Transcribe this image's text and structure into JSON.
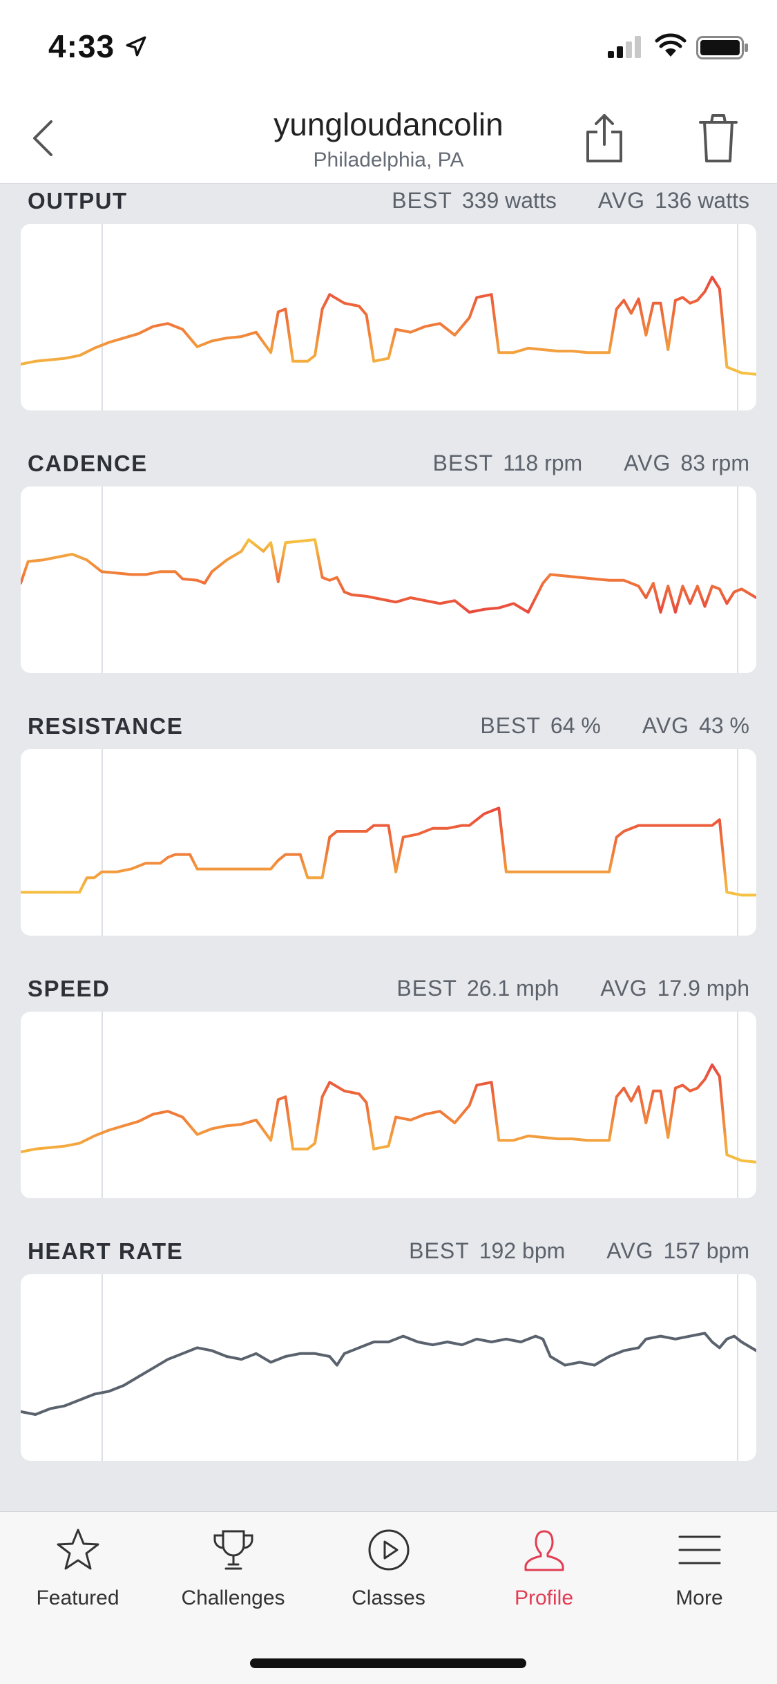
{
  "status_bar": {
    "time": "4:33"
  },
  "header": {
    "title": "yungloudancolin",
    "subtitle": "Philadelphia, PA"
  },
  "metrics": [
    {
      "label": "OUTPUT",
      "best_label": "BEST",
      "best_value": "339 watts",
      "avg_label": "AVG",
      "avg_value": "136 watts",
      "colors": [
        "#f5c242",
        "#f07a3a",
        "#e84a3d"
      ],
      "ylim": [
        0,
        100
      ],
      "points": [
        [
          0,
          20
        ],
        [
          2,
          22
        ],
        [
          4,
          23
        ],
        [
          6,
          24
        ],
        [
          8,
          26
        ],
        [
          10,
          31
        ],
        [
          12,
          35
        ],
        [
          14,
          38
        ],
        [
          16,
          41
        ],
        [
          18,
          46
        ],
        [
          20,
          48
        ],
        [
          22,
          44
        ],
        [
          24,
          32
        ],
        [
          26,
          36
        ],
        [
          28,
          38
        ],
        [
          30,
          39
        ],
        [
          32,
          42
        ],
        [
          34,
          28
        ],
        [
          35,
          56
        ],
        [
          36,
          58
        ],
        [
          37,
          22
        ],
        [
          39,
          22
        ],
        [
          40,
          26
        ],
        [
          41,
          58
        ],
        [
          42,
          68
        ],
        [
          44,
          62
        ],
        [
          46,
          60
        ],
        [
          47,
          54
        ],
        [
          48,
          22
        ],
        [
          50,
          24
        ],
        [
          51,
          44
        ],
        [
          53,
          42
        ],
        [
          55,
          46
        ],
        [
          57,
          48
        ],
        [
          59,
          40
        ],
        [
          61,
          52
        ],
        [
          62,
          66
        ],
        [
          64,
          68
        ],
        [
          65,
          28
        ],
        [
          67,
          28
        ],
        [
          69,
          31
        ],
        [
          71,
          30
        ],
        [
          73,
          29
        ],
        [
          75,
          29
        ],
        [
          77,
          28
        ],
        [
          79,
          28
        ],
        [
          80,
          28
        ],
        [
          81,
          58
        ],
        [
          82,
          64
        ],
        [
          83,
          55
        ],
        [
          84,
          65
        ],
        [
          85,
          40
        ],
        [
          86,
          62
        ],
        [
          87,
          62
        ],
        [
          88,
          30
        ],
        [
          89,
          64
        ],
        [
          90,
          66
        ],
        [
          91,
          62
        ],
        [
          92,
          64
        ],
        [
          93,
          70
        ],
        [
          94,
          80
        ],
        [
          95,
          72
        ],
        [
          96,
          18
        ],
        [
          98,
          14
        ],
        [
          100,
          13
        ]
      ]
    },
    {
      "label": "CADENCE",
      "best_label": "BEST",
      "best_value": "118 rpm",
      "avg_label": "AVG",
      "avg_value": "83 rpm",
      "colors": [
        "#e84a3d",
        "#f07a3a",
        "#f5c242"
      ],
      "ylim": [
        0,
        100
      ],
      "points": [
        [
          0,
          50
        ],
        [
          1,
          65
        ],
        [
          3,
          66
        ],
        [
          5,
          68
        ],
        [
          7,
          70
        ],
        [
          9,
          66
        ],
        [
          11,
          58
        ],
        [
          13,
          57
        ],
        [
          15,
          56
        ],
        [
          17,
          56
        ],
        [
          19,
          58
        ],
        [
          21,
          58
        ],
        [
          22,
          53
        ],
        [
          24,
          52
        ],
        [
          25,
          50
        ],
        [
          26,
          58
        ],
        [
          28,
          66
        ],
        [
          30,
          72
        ],
        [
          31,
          80
        ],
        [
          33,
          72
        ],
        [
          34,
          78
        ],
        [
          35,
          51
        ],
        [
          36,
          78
        ],
        [
          38,
          79
        ],
        [
          40,
          80
        ],
        [
          41,
          54
        ],
        [
          42,
          52
        ],
        [
          43,
          54
        ],
        [
          44,
          44
        ],
        [
          45,
          42
        ],
        [
          47,
          41
        ],
        [
          49,
          39
        ],
        [
          51,
          37
        ],
        [
          53,
          40
        ],
        [
          55,
          38
        ],
        [
          57,
          36
        ],
        [
          59,
          38
        ],
        [
          61,
          30
        ],
        [
          63,
          32
        ],
        [
          65,
          33
        ],
        [
          67,
          36
        ],
        [
          69,
          30
        ],
        [
          71,
          50
        ],
        [
          72,
          56
        ],
        [
          74,
          55
        ],
        [
          76,
          54
        ],
        [
          78,
          53
        ],
        [
          80,
          52
        ],
        [
          82,
          52
        ],
        [
          84,
          48
        ],
        [
          85,
          40
        ],
        [
          86,
          50
        ],
        [
          87,
          30
        ],
        [
          88,
          48
        ],
        [
          89,
          30
        ],
        [
          90,
          48
        ],
        [
          91,
          36
        ],
        [
          92,
          48
        ],
        [
          93,
          34
        ],
        [
          94,
          48
        ],
        [
          95,
          46
        ],
        [
          96,
          36
        ],
        [
          97,
          44
        ],
        [
          98,
          46
        ],
        [
          100,
          40
        ]
      ]
    },
    {
      "label": "RESISTANCE",
      "best_label": "BEST",
      "best_value": "64 %",
      "avg_label": "AVG",
      "avg_value": "43 %",
      "colors": [
        "#f5c242",
        "#f07a3a",
        "#e84a3d"
      ],
      "ylim": [
        0,
        100
      ],
      "points": [
        [
          0,
          18
        ],
        [
          4,
          18
        ],
        [
          8,
          18
        ],
        [
          9,
          28
        ],
        [
          10,
          28
        ],
        [
          11,
          32
        ],
        [
          13,
          32
        ],
        [
          15,
          34
        ],
        [
          17,
          38
        ],
        [
          19,
          38
        ],
        [
          20,
          42
        ],
        [
          21,
          44
        ],
        [
          23,
          44
        ],
        [
          24,
          34
        ],
        [
          26,
          34
        ],
        [
          28,
          34
        ],
        [
          30,
          34
        ],
        [
          32,
          34
        ],
        [
          34,
          34
        ],
        [
          35,
          40
        ],
        [
          36,
          44
        ],
        [
          38,
          44
        ],
        [
          39,
          28
        ],
        [
          40,
          28
        ],
        [
          41,
          28
        ],
        [
          42,
          56
        ],
        [
          43,
          60
        ],
        [
          45,
          60
        ],
        [
          47,
          60
        ],
        [
          48,
          64
        ],
        [
          49,
          64
        ],
        [
          50,
          64
        ],
        [
          51,
          32
        ],
        [
          52,
          56
        ],
        [
          54,
          58
        ],
        [
          56,
          62
        ],
        [
          58,
          62
        ],
        [
          60,
          64
        ],
        [
          61,
          64
        ],
        [
          62,
          68
        ],
        [
          63,
          72
        ],
        [
          64,
          74
        ],
        [
          65,
          76
        ],
        [
          66,
          32
        ],
        [
          68,
          32
        ],
        [
          70,
          32
        ],
        [
          72,
          32
        ],
        [
          74,
          32
        ],
        [
          76,
          32
        ],
        [
          78,
          32
        ],
        [
          80,
          32
        ],
        [
          81,
          56
        ],
        [
          82,
          60
        ],
        [
          84,
          64
        ],
        [
          86,
          64
        ],
        [
          88,
          64
        ],
        [
          90,
          64
        ],
        [
          92,
          64
        ],
        [
          94,
          64
        ],
        [
          95,
          68
        ],
        [
          96,
          18
        ],
        [
          98,
          16
        ],
        [
          100,
          16
        ]
      ]
    },
    {
      "label": "SPEED",
      "best_label": "BEST",
      "best_value": "26.1 mph",
      "avg_label": "AVG",
      "avg_value": "17.9 mph",
      "colors": [
        "#f5c242",
        "#f07a3a",
        "#e84a3d"
      ],
      "ylim": [
        0,
        100
      ],
      "points": [
        [
          0,
          20
        ],
        [
          2,
          22
        ],
        [
          4,
          23
        ],
        [
          6,
          24
        ],
        [
          8,
          26
        ],
        [
          10,
          31
        ],
        [
          12,
          35
        ],
        [
          14,
          38
        ],
        [
          16,
          41
        ],
        [
          18,
          46
        ],
        [
          20,
          48
        ],
        [
          22,
          44
        ],
        [
          24,
          32
        ],
        [
          26,
          36
        ],
        [
          28,
          38
        ],
        [
          30,
          39
        ],
        [
          32,
          42
        ],
        [
          34,
          28
        ],
        [
          35,
          56
        ],
        [
          36,
          58
        ],
        [
          37,
          22
        ],
        [
          39,
          22
        ],
        [
          40,
          26
        ],
        [
          41,
          58
        ],
        [
          42,
          68
        ],
        [
          44,
          62
        ],
        [
          46,
          60
        ],
        [
          47,
          54
        ],
        [
          48,
          22
        ],
        [
          50,
          24
        ],
        [
          51,
          44
        ],
        [
          53,
          42
        ],
        [
          55,
          46
        ],
        [
          57,
          48
        ],
        [
          59,
          40
        ],
        [
          61,
          52
        ],
        [
          62,
          66
        ],
        [
          64,
          68
        ],
        [
          65,
          28
        ],
        [
          67,
          28
        ],
        [
          69,
          31
        ],
        [
          71,
          30
        ],
        [
          73,
          29
        ],
        [
          75,
          29
        ],
        [
          77,
          28
        ],
        [
          79,
          28
        ],
        [
          80,
          28
        ],
        [
          81,
          58
        ],
        [
          82,
          64
        ],
        [
          83,
          55
        ],
        [
          84,
          65
        ],
        [
          85,
          40
        ],
        [
          86,
          62
        ],
        [
          87,
          62
        ],
        [
          88,
          30
        ],
        [
          89,
          64
        ],
        [
          90,
          66
        ],
        [
          91,
          62
        ],
        [
          92,
          64
        ],
        [
          93,
          70
        ],
        [
          94,
          80
        ],
        [
          95,
          72
        ],
        [
          96,
          18
        ],
        [
          98,
          14
        ],
        [
          100,
          13
        ]
      ]
    },
    {
      "label": "HEART RATE",
      "best_label": "BEST",
      "best_value": "192 bpm",
      "avg_label": "AVG",
      "avg_value": "157 bpm",
      "colors": [
        "#5a626e",
        "#5a626e",
        "#5a626e"
      ],
      "ylim": [
        0,
        100
      ],
      "points": [
        [
          0,
          22
        ],
        [
          2,
          20
        ],
        [
          4,
          24
        ],
        [
          6,
          26
        ],
        [
          8,
          30
        ],
        [
          10,
          34
        ],
        [
          12,
          36
        ],
        [
          14,
          40
        ],
        [
          16,
          46
        ],
        [
          18,
          52
        ],
        [
          20,
          58
        ],
        [
          22,
          62
        ],
        [
          24,
          66
        ],
        [
          26,
          64
        ],
        [
          28,
          60
        ],
        [
          30,
          58
        ],
        [
          32,
          62
        ],
        [
          34,
          56
        ],
        [
          36,
          60
        ],
        [
          38,
          62
        ],
        [
          40,
          62
        ],
        [
          42,
          60
        ],
        [
          43,
          54
        ],
        [
          44,
          62
        ],
        [
          46,
          66
        ],
        [
          48,
          70
        ],
        [
          50,
          70
        ],
        [
          51,
          72
        ],
        [
          52,
          74
        ],
        [
          54,
          70
        ],
        [
          56,
          68
        ],
        [
          58,
          70
        ],
        [
          60,
          68
        ],
        [
          62,
          72
        ],
        [
          64,
          70
        ],
        [
          66,
          72
        ],
        [
          68,
          70
        ],
        [
          70,
          74
        ],
        [
          71,
          72
        ],
        [
          72,
          60
        ],
        [
          74,
          54
        ],
        [
          76,
          56
        ],
        [
          78,
          54
        ],
        [
          80,
          60
        ],
        [
          82,
          64
        ],
        [
          84,
          66
        ],
        [
          85,
          72
        ],
        [
          87,
          74
        ],
        [
          89,
          72
        ],
        [
          91,
          74
        ],
        [
          93,
          76
        ],
        [
          94,
          70
        ],
        [
          95,
          66
        ],
        [
          96,
          72
        ],
        [
          97,
          74
        ],
        [
          98,
          70
        ],
        [
          100,
          64
        ]
      ]
    }
  ],
  "tabs": [
    {
      "label": "Featured",
      "icon": "star-icon",
      "active": false
    },
    {
      "label": "Challenges",
      "icon": "trophy-icon",
      "active": false
    },
    {
      "label": "Classes",
      "icon": "play-circle-icon",
      "active": false
    },
    {
      "label": "Profile",
      "icon": "person-icon",
      "active": true
    },
    {
      "label": "More",
      "icon": "menu-icon",
      "active": false
    }
  ],
  "accent_color": "#e23d54"
}
